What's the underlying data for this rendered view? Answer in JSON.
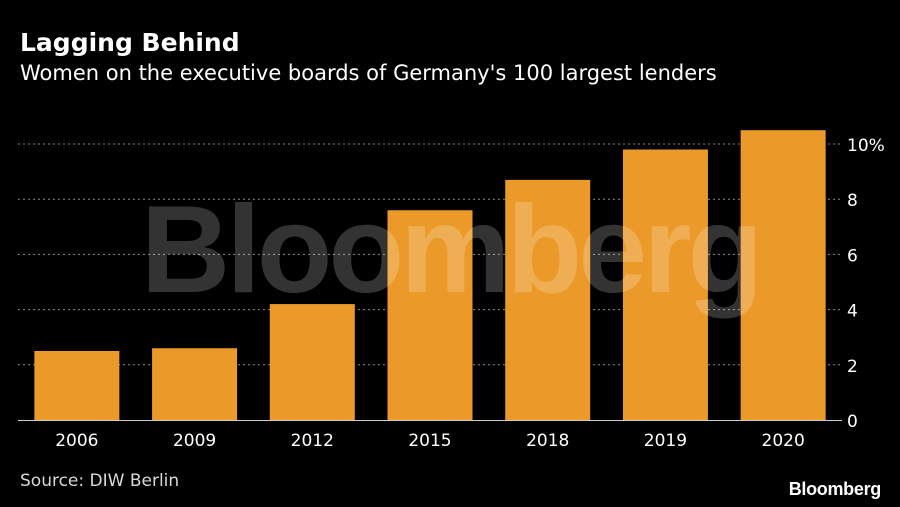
{
  "title": "Lagging Behind",
  "subtitle": "Women on the executive boards of Germany's 100 largest lenders",
  "source": "Source: DIW Berlin",
  "brand": "Bloomberg",
  "watermark": "Bloomberg",
  "colors": {
    "background": "#000000",
    "bar": "#eb9a2a",
    "grid": "#8a8a8a",
    "text": "#ffffff"
  },
  "chart_data": {
    "type": "bar",
    "categories": [
      "2006",
      "2009",
      "2012",
      "2015",
      "2018",
      "2019",
      "2020"
    ],
    "values": [
      2.5,
      2.6,
      4.2,
      7.6,
      8.7,
      9.8,
      10.5
    ],
    "unit": "%",
    "ylim": [
      0,
      10.5
    ],
    "yticks": [
      0,
      2,
      4,
      6,
      8,
      10
    ],
    "ytick_labels": [
      "0",
      "2",
      "4",
      "6",
      "8",
      "10%"
    ],
    "grid": true,
    "y_axis_position": "right",
    "title": "Lagging Behind",
    "subtitle": "Women on the executive boards of Germany's 100 largest lenders"
  }
}
